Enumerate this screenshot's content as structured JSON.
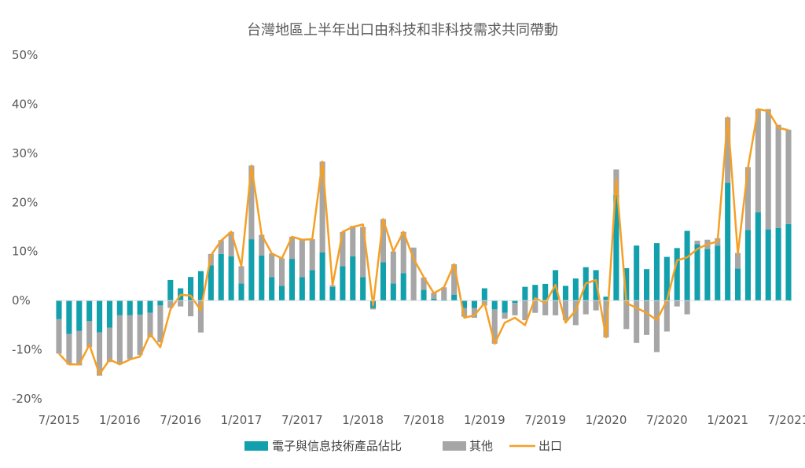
{
  "chart_data": {
    "type": "bar",
    "title": "台灣地區上半年出口由科技和非科技需求共同帶動",
    "xlabel": "",
    "ylabel": "",
    "ylim": [
      -20,
      50
    ],
    "y_ticks": [
      "-20%",
      "-10%",
      "0%",
      "10%",
      "20%",
      "30%",
      "40%",
      "50%"
    ],
    "y_tick_values": [
      -20,
      -10,
      0,
      10,
      20,
      30,
      40,
      50
    ],
    "x_tick_labels": [
      "7/2015",
      "1/2016",
      "7/2016",
      "1/2017",
      "7/2017",
      "1/2018",
      "7/2018",
      "1/2019",
      "7/2019",
      "1/2020",
      "7/2020",
      "1/2021",
      "7/2021"
    ],
    "x_tick_index": [
      0,
      6,
      12,
      18,
      24,
      30,
      36,
      42,
      48,
      54,
      60,
      66,
      72
    ],
    "categories": [
      "7/2015",
      "8/2015",
      "9/2015",
      "10/2015",
      "11/2015",
      "12/2015",
      "1/2016",
      "2/2016",
      "3/2016",
      "4/2016",
      "5/2016",
      "6/2016",
      "7/2016",
      "8/2016",
      "9/2016",
      "10/2016",
      "11/2016",
      "12/2016",
      "1/2017",
      "2/2017",
      "3/2017",
      "4/2017",
      "5/2017",
      "6/2017",
      "7/2017",
      "8/2017",
      "9/2017",
      "10/2017",
      "11/2017",
      "12/2017",
      "1/2018",
      "2/2018",
      "3/2018",
      "4/2018",
      "5/2018",
      "6/2018",
      "7/2018",
      "8/2018",
      "9/2018",
      "10/2018",
      "11/2018",
      "12/2018",
      "1/2019",
      "2/2019",
      "3/2019",
      "4/2019",
      "5/2019",
      "6/2019",
      "7/2019",
      "8/2019",
      "9/2019",
      "10/2019",
      "11/2019",
      "12/2019",
      "1/2020",
      "2/2020",
      "3/2020",
      "4/2020",
      "5/2020",
      "6/2020",
      "7/2020",
      "8/2020",
      "9/2020",
      "10/2020",
      "11/2020",
      "12/2020",
      "1/2021",
      "2/2021",
      "3/2021",
      "4/2021",
      "5/2021",
      "6/2021",
      "7/2021"
    ],
    "series": [
      {
        "name": "電子與信息技術產品佔比",
        "color": "#12a0ac",
        "values": [
          -3.8,
          -6.8,
          -6.2,
          -4.2,
          -6.5,
          -5.5,
          -3.0,
          -3.0,
          -2.9,
          -2.5,
          -1.0,
          4.2,
          2.5,
          4.8,
          6.0,
          7.2,
          9.5,
          9.0,
          3.5,
          12.5,
          9.2,
          4.8,
          3.0,
          8.5,
          4.8,
          6.2,
          9.8,
          2.8,
          7.0,
          9.0,
          4.8,
          -1.5,
          7.8,
          3.5,
          5.6,
          0.0,
          2.2,
          0.4,
          0.2,
          1.2,
          -1.5,
          -1.5,
          2.5,
          -1.8,
          -2.5,
          -0.5,
          2.8,
          3.2,
          3.4,
          6.2,
          3.0,
          4.5,
          6.8,
          6.2,
          0.8,
          21.5,
          6.6,
          11.2,
          6.4,
          11.7,
          8.9,
          10.7,
          14.2,
          11.5,
          10.5,
          11.2,
          24.0,
          6.5,
          14.4,
          18.0,
          14.5,
          14.8,
          15.6
        ]
      },
      {
        "name": "其他",
        "color": "#a6a6a6",
        "values": [
          -7.0,
          -6.2,
          -7.0,
          -5.3,
          -8.8,
          -7.0,
          -10.0,
          -8.9,
          -8.2,
          -5.0,
          -7.5,
          -1.5,
          -1.2,
          -3.2,
          -6.5,
          2.3,
          2.8,
          5.0,
          3.5,
          15.0,
          4.2,
          4.8,
          5.6,
          4.5,
          7.6,
          6.3,
          18.5,
          0.3,
          7.0,
          6.2,
          10.2,
          -0.3,
          8.8,
          6.5,
          8.4,
          10.8,
          2.5,
          1.2,
          2.5,
          6.2,
          -1.8,
          -2.0,
          -1.0,
          -7.0,
          -1.2,
          -2.5,
          -4.0,
          -2.5,
          -3.0,
          -3.0,
          -4.0,
          -5.0,
          -2.8,
          -2.0,
          -7.5,
          5.2,
          -5.8,
          -8.6,
          -7.0,
          -10.5,
          -6.3,
          -1.2,
          -2.8,
          0.7,
          1.9,
          1.5,
          13.3,
          3.2,
          12.8,
          21.0,
          24.5,
          21.0,
          19.2
        ]
      },
      {
        "name": "出口",
        "color": "#f5a025",
        "type": "line",
        "values": [
          -10.8,
          -13.0,
          -13.0,
          -9.0,
          -15.0,
          -12.0,
          -13.0,
          -12.0,
          -11.4,
          -6.8,
          -9.5,
          -1.8,
          1.2,
          1.0,
          -2.0,
          9.2,
          12.2,
          14.0,
          7.0,
          27.5,
          13.4,
          9.6,
          8.6,
          13.0,
          12.4,
          12.5,
          28.3,
          3.1,
          14.0,
          15.0,
          15.5,
          -1.0,
          16.6,
          10.0,
          14.0,
          8.5,
          4.8,
          1.5,
          2.7,
          7.4,
          -3.5,
          -3.0,
          -0.5,
          -8.8,
          -4.5,
          -3.5,
          -5.0,
          0.5,
          -0.5,
          3.2,
          -4.5,
          -2.0,
          3.5,
          4.2,
          -7.5,
          24.8,
          -0.5,
          -1.5,
          -2.5,
          -4.0,
          0.0,
          8.2,
          8.8,
          10.5,
          11.5,
          12.0,
          37.3,
          9.5,
          27.0,
          39.0,
          38.6,
          35.2,
          34.7
        ]
      }
    ],
    "legend_position": "bottom",
    "grid": false
  }
}
